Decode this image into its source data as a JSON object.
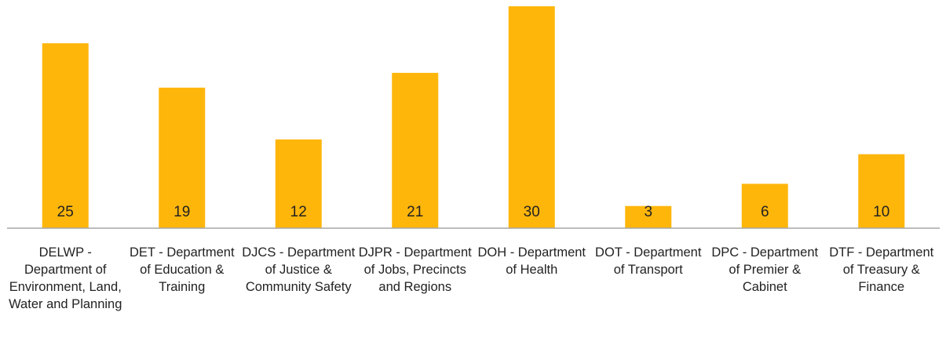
{
  "chart_data": {
    "type": "bar",
    "categories": [
      "DELWP - Department of Environment, Land, Water and Planning",
      "DET - Department of Education & Training",
      "DJCS - Department of Justice & Community Safety",
      "DJPR - Department of Jobs, Precincts and Regions",
      "DOH - Department of Health",
      "DOT - Department of Transport",
      "DPC - Department of Premier & Cabinet",
      "DTF - Department of Treasury & Finance"
    ],
    "values": [
      25,
      19,
      12,
      21,
      30,
      3,
      6,
      10
    ],
    "color": "#ffb60b"
  }
}
